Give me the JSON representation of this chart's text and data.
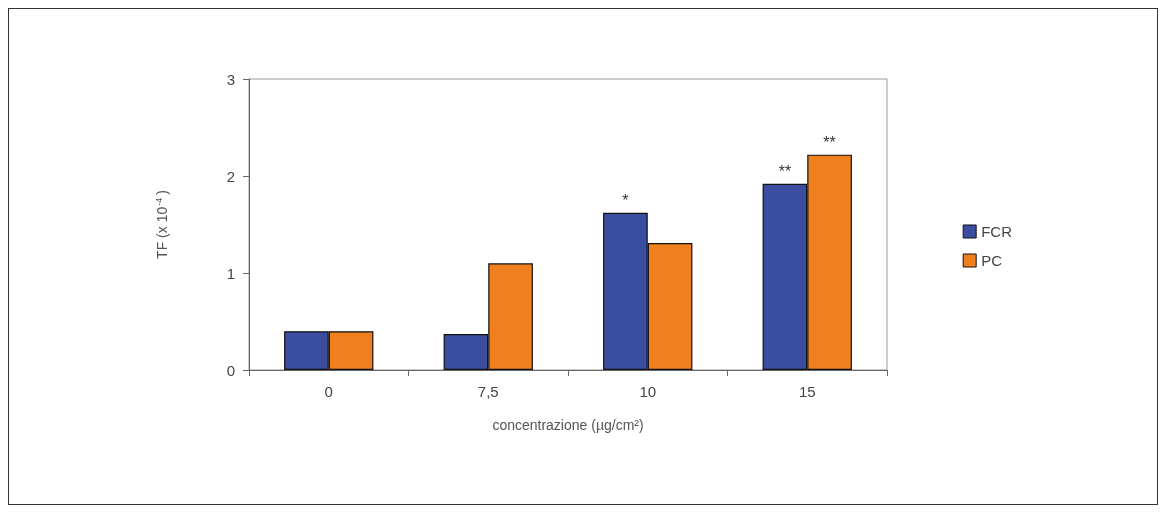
{
  "chart_data": {
    "type": "bar",
    "xlabel": "concentrazione (µg/cm²)",
    "ylabel": "TF (x 10$^{-4}$)",
    "categories": [
      "0",
      "7,5",
      "10",
      "15"
    ],
    "series": [
      {
        "name": "FCR",
        "color": "#3a4da0",
        "values": [
          0.4,
          0.37,
          1.62,
          1.92
        ]
      },
      {
        "name": "PC",
        "color": "#f07f1e",
        "values": [
          0.4,
          1.1,
          1.31,
          2.22
        ]
      }
    ],
    "ylim": [
      0,
      3
    ],
    "yticks": [
      0,
      1,
      2,
      3
    ],
    "grid": false,
    "legend": "right",
    "annotations": [
      {
        "text": "*",
        "x": "10",
        "y": 1.62
      },
      {
        "text": "**",
        "x": "15",
        "y": 1.92
      },
      {
        "text": "**",
        "x": "15",
        "y": 2.22
      }
    ]
  }
}
